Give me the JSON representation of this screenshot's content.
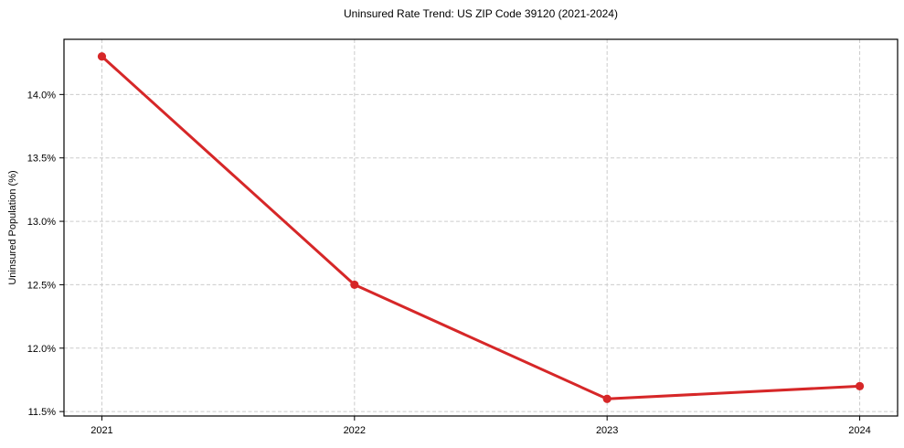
{
  "chart_data": {
    "type": "line",
    "title": "Uninsured Rate Trend: US ZIP Code 39120 (2021-2024)",
    "xlabel": "",
    "ylabel": "Uninsured Population (%)",
    "x": [
      2021,
      2022,
      2023,
      2024
    ],
    "series": [
      {
        "name": "uninsured-rate",
        "values": [
          14.3,
          12.5,
          11.6,
          11.7
        ]
      }
    ],
    "x_tick_labels": [
      "2021",
      "2022",
      "2023",
      "2024"
    ],
    "y_tick_values": [
      11.5,
      12.0,
      12.5,
      13.0,
      13.5,
      14.0
    ],
    "y_tick_labels": [
      "11.5%",
      "12.0%",
      "12.5%",
      "13.0%",
      "13.5%",
      "14.0%"
    ],
    "xlim": [
      2020.85,
      2024.15
    ],
    "ylim": [
      11.465,
      14.435
    ],
    "grid": true,
    "grid_style": "dashed",
    "legend": "none",
    "colors": {
      "line": "#d62728",
      "marker": "#d62728",
      "grid": "#cccccc",
      "axis": "#000000",
      "background": "#ffffff"
    }
  }
}
